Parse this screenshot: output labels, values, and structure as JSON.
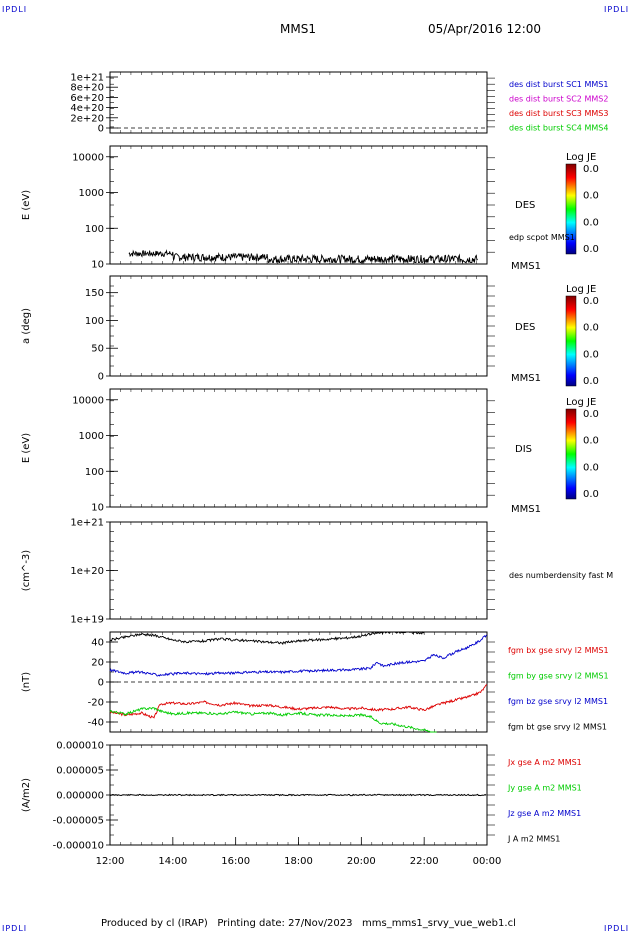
{
  "header": {
    "corner_tl": "IPDLI",
    "corner_tr": "IPDLI",
    "corner_bl": "IPDLI",
    "corner_br": "IPDLI",
    "spacecraft": "MMS1",
    "datetime": "05/Apr/2016 12:00"
  },
  "footer": {
    "text": "Produced by cl (IRAP)   Printing date: 27/Nov/2023   mms_mms1_srvy_vue_web1.cl"
  },
  "colors": {
    "blue": "#0000cc",
    "magenta": "#cc00cc",
    "red": "#dd0000",
    "green": "#00cc00",
    "black": "#000000"
  },
  "colorbar": {
    "title": "Log JE",
    "ticks": [
      "0.0",
      "0.0",
      "0.0",
      "0.0"
    ]
  },
  "time_axis": {
    "ticks": [
      "12:00",
      "14:00",
      "16:00",
      "18:00",
      "20:00",
      "22:00",
      "00:00"
    ]
  },
  "chart_data": [
    {
      "type": "line",
      "panel": "dist",
      "y_ticks": [
        "1e+21",
        "8e+20",
        "6e+20",
        "4e+20",
        "2e+20",
        "0"
      ],
      "ylim": [
        0,
        1.1e+21
      ],
      "legend": [
        {
          "label": "des dist burst SC1 MMS1",
          "color": "#0000cc"
        },
        {
          "label": "des dist burst SC2 MMS2",
          "color": "#cc00cc"
        },
        {
          "label": "des dist burst SC3 MMS3",
          "color": "#dd0000"
        },
        {
          "label": "des dist burst SC4 MMS4",
          "color": "#00cc00"
        }
      ]
    },
    {
      "type": "heatmap",
      "panel": "des_energy",
      "ylabel": "E (eV)",
      "y_ticks": [
        "10000",
        "1000",
        "100",
        "10"
      ],
      "ylog": true,
      "ylim": [
        10,
        20000
      ],
      "right_label": "DES",
      "right_sub": "MMS1",
      "overlay_label": "edp scpot MMS1",
      "scpot_range_eV": [
        11,
        25
      ]
    },
    {
      "type": "heatmap",
      "panel": "des_pitch",
      "ylabel": "a (deg)",
      "y_ticks": [
        "150",
        "100",
        "50",
        "0"
      ],
      "ylim": [
        0,
        180
      ],
      "right_label": "DES",
      "right_sub": "MMS1"
    },
    {
      "type": "heatmap",
      "panel": "dis_energy",
      "ylabel": "E (eV)",
      "y_ticks": [
        "10000",
        "1000",
        "100",
        "10"
      ],
      "ylog": true,
      "ylim": [
        10,
        20000
      ],
      "right_label": "DIS",
      "right_sub": "MMS1"
    },
    {
      "type": "line",
      "panel": "density",
      "ylabel": "(cm^-3)",
      "y_ticks": [
        "1e+21",
        "1e+20",
        "1e+19"
      ],
      "ylog": true,
      "ylim": [
        1e+19,
        1e+21
      ],
      "legend": [
        {
          "label": "des numberdensity fast M",
          "color": "#000000"
        }
      ]
    },
    {
      "type": "line",
      "panel": "fgm",
      "ylabel": "(nT)",
      "y_ticks": [
        "40",
        "20",
        "0",
        "-20",
        "-40"
      ],
      "ylim": [
        -50,
        50
      ],
      "x_hours": [
        12,
        24
      ],
      "series": [
        {
          "name": "fgm bx gse srvy l2 MMS1",
          "color": "#dd0000",
          "points": [
            [
              12.0,
              -30
            ],
            [
              12.5,
              -33
            ],
            [
              13.0,
              -31
            ],
            [
              13.4,
              -36
            ],
            [
              13.6,
              -22
            ],
            [
              14.0,
              -21
            ],
            [
              14.5,
              -22
            ],
            [
              15.0,
              -20
            ],
            [
              15.5,
              -23
            ],
            [
              16.0,
              -21
            ],
            [
              16.5,
              -24
            ],
            [
              17.0,
              -23
            ],
            [
              17.5,
              -25
            ],
            [
              18.0,
              -27
            ],
            [
              18.5,
              -26
            ],
            [
              19.0,
              -25
            ],
            [
              19.5,
              -27
            ],
            [
              20.0,
              -26
            ],
            [
              20.5,
              -28
            ],
            [
              21.0,
              -27
            ],
            [
              21.5,
              -25
            ],
            [
              22.0,
              -28
            ],
            [
              22.5,
              -22
            ],
            [
              23.0,
              -18
            ],
            [
              23.5,
              -14
            ],
            [
              23.8,
              -10
            ],
            [
              24.0,
              -3
            ]
          ]
        },
        {
          "name": "fgm by gse srvy l2 MMS1",
          "color": "#00cc00",
          "points": [
            [
              12.0,
              -29
            ],
            [
              12.5,
              -32
            ],
            [
              13.0,
              -27
            ],
            [
              13.4,
              -26
            ],
            [
              13.6,
              -29
            ],
            [
              14.0,
              -32
            ],
            [
              14.5,
              -31
            ],
            [
              15.0,
              -31
            ],
            [
              15.5,
              -32
            ],
            [
              16.0,
              -30
            ],
            [
              16.5,
              -32
            ],
            [
              17.0,
              -31
            ],
            [
              17.5,
              -33
            ],
            [
              18.0,
              -31
            ],
            [
              18.5,
              -33
            ],
            [
              19.0,
              -33
            ],
            [
              19.5,
              -34
            ],
            [
              20.0,
              -33
            ],
            [
              20.3,
              -35
            ],
            [
              20.6,
              -41
            ],
            [
              21.0,
              -42
            ],
            [
              21.5,
              -45
            ],
            [
              22.0,
              -48
            ],
            [
              22.4,
              -51
            ]
          ]
        },
        {
          "name": "fgm bz gse srvy l2 MMS1",
          "color": "#0000cc",
          "points": [
            [
              12.0,
              12
            ],
            [
              12.5,
              9
            ],
            [
              13.0,
              10
            ],
            [
              13.5,
              7
            ],
            [
              14.0,
              8
            ],
            [
              14.5,
              9
            ],
            [
              15.0,
              8
            ],
            [
              15.5,
              9
            ],
            [
              16.0,
              9
            ],
            [
              16.5,
              10
            ],
            [
              17.0,
              10
            ],
            [
              17.5,
              10
            ],
            [
              18.0,
              11
            ],
            [
              18.5,
              11
            ],
            [
              19.0,
              12
            ],
            [
              19.5,
              12
            ],
            [
              20.0,
              13
            ],
            [
              20.3,
              14
            ],
            [
              20.5,
              20
            ],
            [
              20.7,
              16
            ],
            [
              21.0,
              18
            ],
            [
              21.5,
              20
            ],
            [
              22.0,
              21
            ],
            [
              22.3,
              27
            ],
            [
              22.6,
              24
            ],
            [
              23.0,
              30
            ],
            [
              23.5,
              36
            ],
            [
              23.8,
              42
            ],
            [
              24.0,
              47
            ]
          ]
        },
        {
          "name": "fgm bt gse srvy l2 MMS1",
          "color": "#000000",
          "points": [
            [
              12.0,
              42
            ],
            [
              12.5,
              45
            ],
            [
              13.0,
              48
            ],
            [
              13.5,
              46
            ],
            [
              14.0,
              42
            ],
            [
              14.5,
              40
            ],
            [
              15.0,
              41
            ],
            [
              15.5,
              43
            ],
            [
              16.0,
              42
            ],
            [
              16.5,
              41
            ],
            [
              17.0,
              40
            ],
            [
              17.5,
              39
            ],
            [
              18.0,
              41
            ],
            [
              18.5,
              42
            ],
            [
              19.0,
              43
            ],
            [
              19.5,
              44
            ],
            [
              20.0,
              46
            ],
            [
              20.5,
              49
            ],
            [
              21.0,
              50
            ],
            [
              21.5,
              50
            ],
            [
              22.0,
              49
            ]
          ]
        }
      ]
    },
    {
      "type": "line",
      "panel": "current",
      "ylabel": "(A/m2)",
      "y_ticks": [
        "0.000010",
        "0.000005",
        "0.000000",
        "-0.000005",
        "-0.000010"
      ],
      "ylim": [
        -1e-05,
        1e-05
      ],
      "x_hours": [
        12,
        24
      ],
      "series": [
        {
          "name": "Jx gse A m2 MMS1",
          "color": "#dd0000",
          "points": [
            [
              12,
              0
            ],
            [
              24,
              0
            ]
          ]
        },
        {
          "name": "Jy gse A m2 MMS1",
          "color": "#00cc00",
          "points": [
            [
              12,
              0
            ],
            [
              24,
              0
            ]
          ]
        },
        {
          "name": "Jz gse A m2 MMS1",
          "color": "#0000cc",
          "points": [
            [
              12,
              0
            ],
            [
              24,
              0
            ]
          ]
        },
        {
          "name": "J A m2 MMS1",
          "color": "#000000",
          "points": [
            [
              12,
              0
            ],
            [
              24,
              0
            ]
          ]
        }
      ]
    }
  ]
}
